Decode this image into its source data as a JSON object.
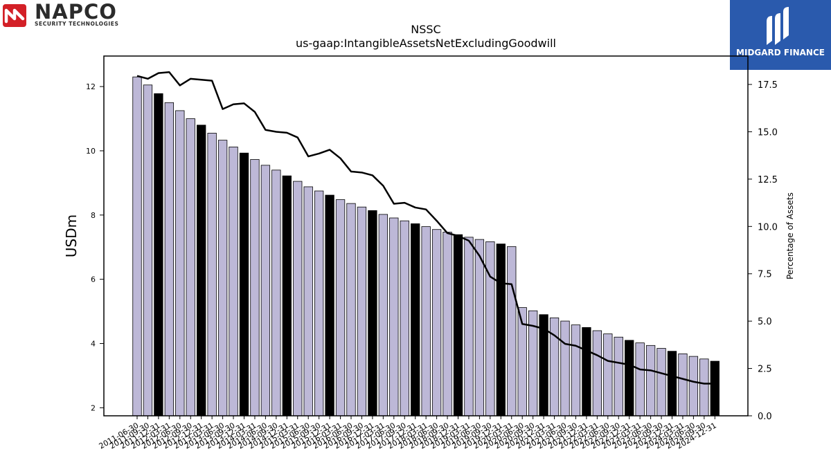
{
  "logos": {
    "napco": {
      "name": "NAPCO",
      "subtitle": "SECURITY TECHNOLOGIES",
      "color": "#d32027"
    },
    "midgard": {
      "name": "MIDGARD FINANCE",
      "color": "#2a5aad"
    }
  },
  "chart_data": {
    "type": "bar",
    "title": "NSSC",
    "subtitle": "us-gaap:IntangibleAssetsNetExcludingGoodwill",
    "ylabel": "USDm",
    "y2label": "Percentage of Assets",
    "ylim": [
      1.75,
      12.95
    ],
    "y2lim": [
      0,
      19.0
    ],
    "yticks": [
      2,
      4,
      6,
      8,
      10,
      12
    ],
    "y2ticks": [
      "0.0",
      "2.5",
      "5.0",
      "7.5",
      "10.0",
      "12.5",
      "15.0",
      "17.5"
    ],
    "bar_color": "#bdb8d7",
    "highlight_color": "#000000",
    "line_color": "#000000",
    "categories": [
      "2011-06-30",
      "2011-09-30",
      "2011-12-31",
      "2012-03-31",
      "2012-06-30",
      "2012-09-30",
      "2012-12-31",
      "2013-03-31",
      "2013-06-30",
      "2013-09-30",
      "2013-12-31",
      "2014-03-31",
      "2014-06-30",
      "2014-09-30",
      "2014-12-31",
      "2015-03-31",
      "2015-06-30",
      "2015-09-30",
      "2015-12-31",
      "2016-03-31",
      "2016-06-30",
      "2016-09-30",
      "2016-12-31",
      "2017-03-31",
      "2017-06-30",
      "2017-09-30",
      "2017-12-31",
      "2018-03-31",
      "2018-06-30",
      "2018-09-30",
      "2018-12-31",
      "2019-03-31",
      "2019-06-30",
      "2019-09-30",
      "2019-12-31",
      "2020-03-31",
      "2020-06-30",
      "2020-09-30",
      "2020-12-31",
      "2021-03-31",
      "2021-06-30",
      "2021-09-30",
      "2021-12-31",
      "2022-03-31",
      "2022-06-30",
      "2022-09-30",
      "2022-12-31",
      "2023-03-31",
      "2023-06-30",
      "2023-09-30",
      "2023-12-31",
      "2024-03-31",
      "2024-06-30",
      "2024-09-30",
      "2024-12-31"
    ],
    "series": [
      {
        "values": [
          12.3,
          12.05,
          11.78,
          11.5,
          11.25,
          11.0,
          10.8,
          10.55,
          10.33,
          10.12,
          9.93,
          9.73,
          9.55,
          9.4,
          9.22,
          9.05,
          8.88,
          8.75,
          8.62,
          8.48,
          8.36,
          8.25,
          8.14,
          8.02,
          7.91,
          7.82,
          7.73,
          7.64,
          7.55,
          7.47,
          7.39,
          7.31,
          7.24,
          7.17,
          7.1,
          7.02,
          5.12,
          5.02,
          4.9,
          4.8,
          4.7,
          4.58,
          4.5,
          4.4,
          4.3,
          4.2,
          4.1,
          4.02,
          3.94,
          3.85,
          3.76,
          3.68,
          3.6,
          3.52,
          3.45
        ]
      },
      {
        "values": [
          17.95,
          17.8,
          18.1,
          18.15,
          17.45,
          17.8,
          17.75,
          17.7,
          16.2,
          16.45,
          16.5,
          16.05,
          15.1,
          15.0,
          14.95,
          14.7,
          13.7,
          13.85,
          14.05,
          13.6,
          12.9,
          12.85,
          12.7,
          12.15,
          11.2,
          11.25,
          11.0,
          10.9,
          10.3,
          9.65,
          9.5,
          9.25,
          8.45,
          7.35,
          7.0,
          6.95,
          4.85,
          4.75,
          4.6,
          4.25,
          3.8,
          3.7,
          3.45,
          3.2,
          2.9,
          2.8,
          2.7,
          2.45,
          2.4,
          2.25,
          2.1,
          1.95,
          1.8,
          1.7,
          1.7
        ]
      }
    ],
    "highlight_indices": [
      2,
      6,
      10,
      14,
      18,
      22,
      26,
      30,
      34,
      38,
      42,
      46,
      50,
      54
    ]
  }
}
